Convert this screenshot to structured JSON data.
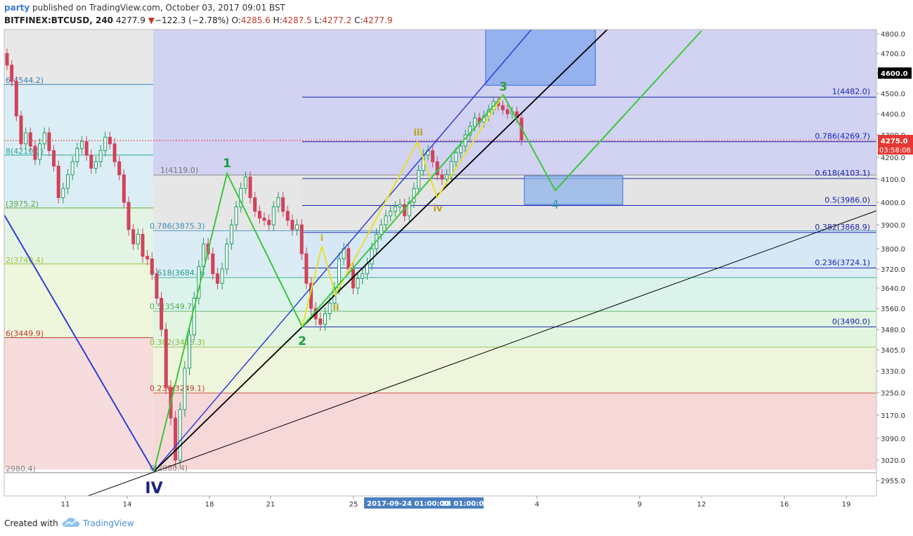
{
  "header": {
    "author": "party",
    "published_text": " published on TradingView.com, October 03, 2017 09:01 BST",
    "symbol": "BITFINEX:BTCUSD, 240",
    "last": "4277.9",
    "arrow": "▼",
    "change": "−122.3 (−2.78%)",
    "o_label": "O:",
    "o_value": "4285.6",
    "h_label": "H:",
    "h_value": "4287.5",
    "l_label": "L:",
    "l_value": "4277.2",
    "c_label": "C:",
    "c_value": "4277.9"
  },
  "footer": {
    "created_with": "Created with",
    "brand": "TradingView"
  },
  "colors": {
    "up": "#1b9a5e",
    "down": "#d0435a",
    "channel_blue": "#2d3fd4",
    "wave_green": "#3ac73a",
    "wave_yellow": "#e8e02a",
    "fib_line": "#1826b0",
    "price_tag": "#e53935"
  },
  "chart_data": {
    "type": "candlestick",
    "y_axis": {
      "ticks": [
        "4800.0",
        "4700.0",
        "4600.0",
        "4500.0",
        "4400.0",
        "4300.0",
        "4200.0",
        "4100.0",
        "4000.0",
        "3900.0",
        "3800.0",
        "3720.0",
        "3640.0",
        "3560.0",
        "3480.0",
        "3405.0",
        "3330.0",
        "3250.0",
        "3170.0",
        "3090.0",
        "3020.0",
        "2955.0"
      ],
      "highlight_label": "4600.0",
      "price_label": "4275.0",
      "countdown_label": "03:58:08"
    },
    "x_axis": {
      "ticks": [
        "11",
        "14",
        "18",
        "21",
        "25",
        "4",
        "9",
        "12",
        "16",
        "19"
      ],
      "crosshair_labels": [
        "2017-09-24 01:00:00",
        "28 01:00:00"
      ]
    },
    "fib_left": [
      {
        "label": "6(4544.2)"
      },
      {
        "label": "8(4210.0)"
      },
      {
        "label": "(3975.2)"
      },
      {
        "label": "2(3740.4)"
      },
      {
        "label": "6(3449.9)"
      },
      {
        "label": "2980.4)"
      }
    ],
    "fib_mid": [
      {
        "label": "1(4119.0)"
      },
      {
        "label": "0.786(3875.3)"
      },
      {
        "label": "0.618(3684.0)"
      },
      {
        "label": "0.5(3549.7)"
      },
      {
        "label": "0.382(3415.3)"
      },
      {
        "label": "0.236(3249.1)"
      },
      {
        "label": "0(2980.4)"
      }
    ],
    "fib_right": [
      {
        "label": "1(4482.0)"
      },
      {
        "label": "0.786(4269.7)"
      },
      {
        "label": "0.618(4103.1)"
      },
      {
        "label": "0.5(3986.0)"
      },
      {
        "label": "0.382(3868.9)"
      },
      {
        "label": "0.236(3724.1)"
      },
      {
        "label": "0(3490.0)"
      }
    ],
    "waves": [
      {
        "label": "IV"
      },
      {
        "label": "1"
      },
      {
        "label": "2"
      },
      {
        "label": "3"
      },
      {
        "label": "4"
      },
      {
        "label": "i"
      },
      {
        "label": "ii"
      },
      {
        "label": "iii"
      },
      {
        "label": "iv"
      }
    ],
    "candles_close": [
      4640,
      4560,
      4390,
      4260,
      4310,
      4250,
      4190,
      4260,
      4310,
      4230,
      4160,
      4020,
      4060,
      4120,
      4180,
      4240,
      4270,
      4210,
      4150,
      4180,
      4230,
      4290,
      4260,
      4180,
      4120,
      4000,
      3880,
      3820,
      3860,
      3770,
      3760,
      3700,
      3600,
      3480,
      3270,
      3160,
      3020,
      3190,
      3340,
      3460,
      3600,
      3730,
      3820,
      3780,
      3700,
      3660,
      3720,
      3820,
      3900,
      3980,
      4060,
      4110,
      4020,
      3960,
      3930,
      3920,
      3900,
      3980,
      4020,
      3960,
      3920,
      3880,
      3900,
      3780,
      3660,
      3560,
      3520,
      3500,
      3540,
      3580,
      3640,
      3760,
      3800,
      3720,
      3640,
      3680,
      3700,
      3740,
      3800,
      3860,
      3900,
      3940,
      3960,
      3980,
      3990,
      3940,
      4000,
      4060,
      4140,
      4210,
      4230,
      4180,
      4120,
      4100,
      4120,
      4180,
      4220,
      4250,
      4300,
      4340,
      4380,
      4360,
      4390,
      4420,
      4460,
      4440,
      4420,
      4400,
      4410,
      4380,
      4278
    ]
  }
}
